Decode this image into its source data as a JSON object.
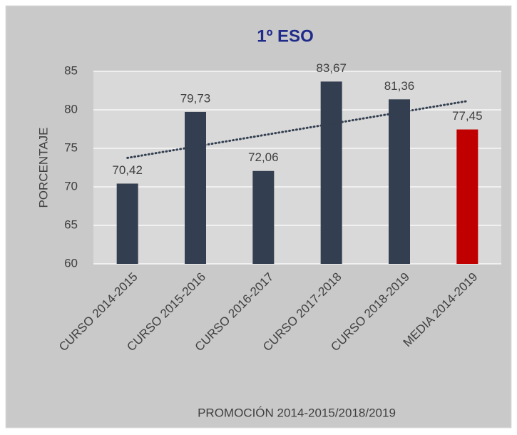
{
  "chart_data": {
    "type": "bar",
    "title": "1º ESO",
    "x_label": "PROMOCIÓN 2014-2015/2018/2019",
    "y_label": "PORCENTAJE",
    "categories": [
      "CURSO 2014-2015",
      "CURSO 2015-2016",
      "CURSO 2016-2017",
      "CURSO 2017-2018",
      "CURSO 2018-2019",
      "MEDIA 2014-2019"
    ],
    "values": [
      70.42,
      79.73,
      72.06,
      83.67,
      81.36,
      77.45
    ],
    "value_labels": [
      "70,42",
      "79,73",
      "72,06",
      "83,67",
      "81,36",
      "77,45"
    ],
    "colors": [
      "#333f50",
      "#333f50",
      "#333f50",
      "#333f50",
      "#333f50",
      "#c00000"
    ],
    "ylim": [
      60,
      85
    ],
    "yticks": [
      60,
      65,
      70,
      75,
      80,
      85
    ],
    "grid": true,
    "trendline": "linear",
    "trendline_color": "#333f50"
  }
}
